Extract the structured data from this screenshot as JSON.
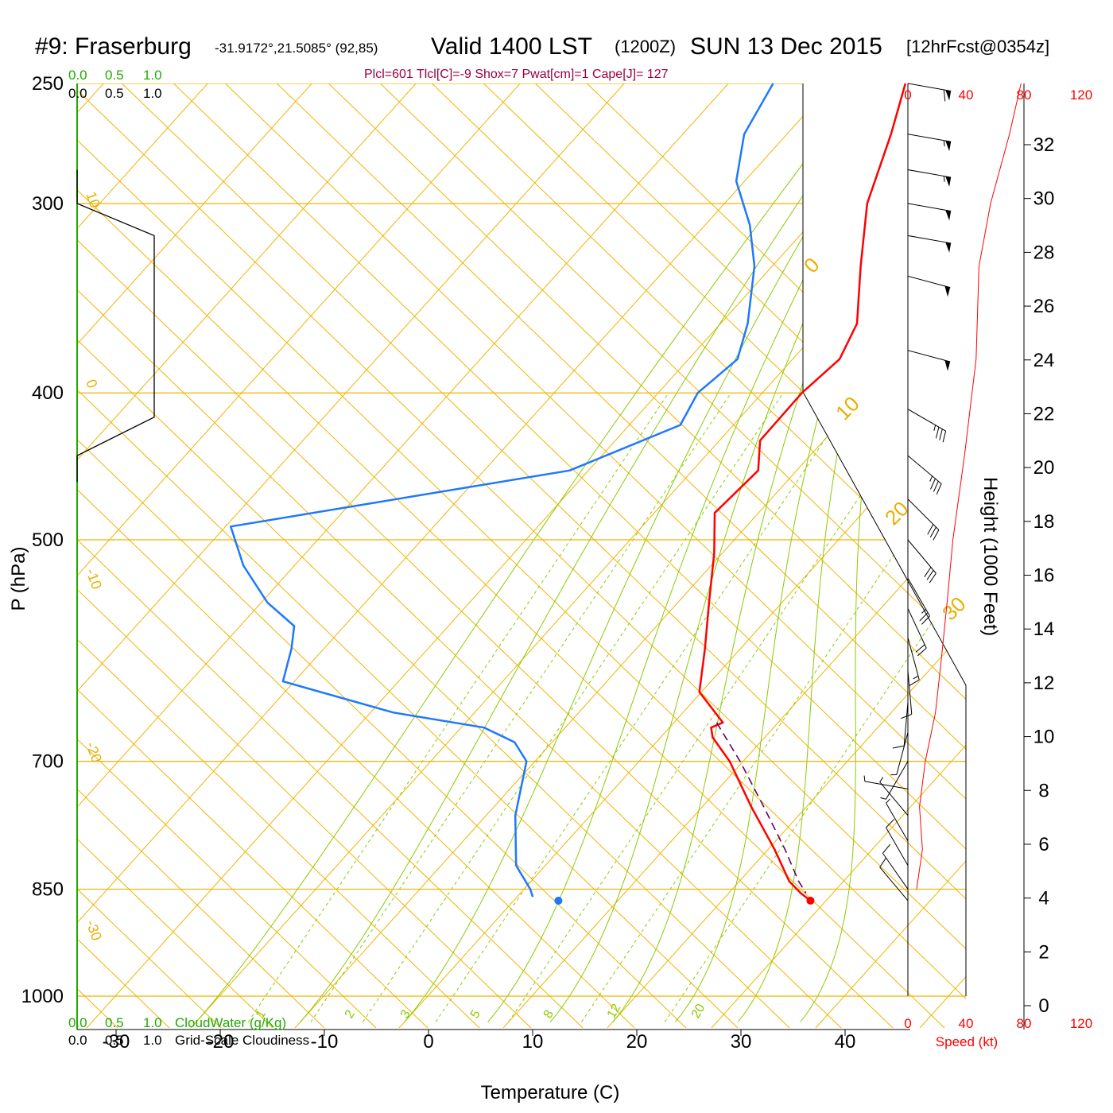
{
  "header": {
    "station": "#9: Fraserburg",
    "coords": "-31.9172°,21.5085° (92,85)",
    "valid": "Valid 1400 LST",
    "zulu": "(1200Z)",
    "date": "SUN 13 Dec 2015",
    "forecast": "[12hrFcst@0354z]"
  },
  "params": "Plcl=601 Tlcl[C]=-9 Shox=7 Pwat[cm]=1 Cape[J]= 127",
  "cloud_scale": {
    "water_ticks": [
      "0.0",
      "0.5",
      "1.0"
    ],
    "cover_ticks": [
      "0.0",
      "0.5",
      "1.0"
    ],
    "water_label": "CloudWater (g/Kg)",
    "cover_label": "Grid-Scale Cloudiness"
  },
  "colors": {
    "temperature": "#ff0000",
    "dewpoint": "#1e78ff",
    "isotherm": "#f0b400",
    "adiabat": "#88cc00",
    "parcel": "#660066",
    "cloud": "#22aa00",
    "params": "#990044"
  },
  "chart_data": {
    "type": "line",
    "title": "#9: Fraserburg Valid 1400 LST SUN 13 Dec 2015",
    "xlabel": "Temperature (C)",
    "ylabel": "P (hPa)",
    "xlim": [
      -33,
      36
    ],
    "x_ticks": [
      "-30",
      "-20",
      "-10",
      "0",
      "10",
      "20",
      "30",
      "40"
    ],
    "y_ticks": [
      "250",
      "300",
      "400",
      "500",
      "700",
      "850",
      "1000"
    ],
    "isotherm_labels": [
      "10",
      "0",
      "-10",
      "-20",
      "-30",
      "0",
      "10",
      "20",
      "30"
    ],
    "mixing_ratio_labels": [
      "1",
      "2",
      "3",
      "5",
      "8",
      "12",
      "20"
    ],
    "series": [
      {
        "name": "Temperature",
        "points": [
          [
            250,
            -33.0
          ],
          [
            270,
            -30.0
          ],
          [
            300,
            -26.3
          ],
          [
            330,
            -21.5
          ],
          [
            360,
            -16.9
          ],
          [
            380,
            -15.5
          ],
          [
            400,
            -16.2
          ],
          [
            430,
            -16.1
          ],
          [
            450,
            -13.7
          ],
          [
            480,
            -14.2
          ],
          [
            510,
            -10.8
          ],
          [
            550,
            -7.0
          ],
          [
            590,
            -3.4
          ],
          [
            630,
            -0.2
          ],
          [
            660,
            4.7
          ],
          [
            665,
            4.0
          ],
          [
            675,
            5.0
          ],
          [
            700,
            8.7
          ],
          [
            750,
            14.7
          ],
          [
            800,
            20.6
          ],
          [
            840,
            24.8
          ],
          [
            855,
            26.9
          ],
          [
            865,
            28.5
          ]
        ]
      },
      {
        "name": "Dew point",
        "points": [
          [
            250,
            -45.7
          ],
          [
            270,
            -44.1
          ],
          [
            290,
            -40.8
          ],
          [
            310,
            -35.7
          ],
          [
            330,
            -31.7
          ],
          [
            360,
            -27.4
          ],
          [
            380,
            -25.3
          ],
          [
            400,
            -26.2
          ],
          [
            420,
            -25.1
          ],
          [
            450,
            -31.8
          ],
          [
            490,
            -59.5
          ],
          [
            520,
            -54.9
          ],
          [
            550,
            -49.4
          ],
          [
            570,
            -44.8
          ],
          [
            590,
            -43.1
          ],
          [
            620,
            -41.1
          ],
          [
            650,
            -27.8
          ],
          [
            665,
            -17.8
          ],
          [
            680,
            -13.6
          ],
          [
            700,
            -10.8
          ],
          [
            760,
            -7.2
          ],
          [
            820,
            -2.8
          ],
          [
            850,
            0.6
          ],
          [
            860,
            1.5
          ]
        ]
      },
      {
        "name": "Parcel",
        "points": [
          [
            660,
            4.1
          ],
          [
            700,
            9.7
          ],
          [
            750,
            15.9
          ],
          [
            800,
            21.6
          ],
          [
            840,
            25.7
          ],
          [
            855,
            27.4
          ]
        ]
      }
    ],
    "surface": {
      "pressure": 865,
      "temperature": 28.5,
      "dewpoint": 4.3
    },
    "height_axis": {
      "label": "Height (1000 Feet)",
      "ticks": [
        "32",
        "30",
        "28",
        "26",
        "24",
        "22",
        "20",
        "18",
        "16",
        "14",
        "12",
        "10",
        "8",
        "6",
        "4",
        "2",
        "0"
      ]
    },
    "wind_speed": {
      "label": "Speed (kt)",
      "ticks": [
        "0",
        "40",
        "80",
        "120"
      ],
      "profile": [
        [
          250,
          78
        ],
        [
          270,
          70
        ],
        [
          300,
          57
        ],
        [
          330,
          49
        ],
        [
          380,
          47
        ],
        [
          440,
          39
        ],
        [
          500,
          31
        ],
        [
          550,
          27
        ],
        [
          600,
          23
        ],
        [
          650,
          19
        ],
        [
          700,
          12
        ],
        [
          750,
          8
        ],
        [
          800,
          10
        ],
        [
          850,
          6
        ]
      ]
    },
    "wind_barbs": [
      {
        "p": 250,
        "dir": 280,
        "spd": 60
      },
      {
        "p": 270,
        "dir": 280,
        "spd": 55
      },
      {
        "p": 285,
        "dir": 280,
        "spd": 55
      },
      {
        "p": 300,
        "dir": 280,
        "spd": 50
      },
      {
        "p": 315,
        "dir": 280,
        "spd": 50
      },
      {
        "p": 335,
        "dir": 285,
        "spd": 50
      },
      {
        "p": 375,
        "dir": 285,
        "spd": 50
      },
      {
        "p": 410,
        "dir": 300,
        "spd": 35
      },
      {
        "p": 440,
        "dir": 310,
        "spd": 35
      },
      {
        "p": 470,
        "dir": 315,
        "spd": 30
      },
      {
        "p": 500,
        "dir": 320,
        "spd": 30
      },
      {
        "p": 530,
        "dir": 330,
        "spd": 25
      },
      {
        "p": 555,
        "dir": 335,
        "spd": 20
      },
      {
        "p": 580,
        "dir": 345,
        "spd": 15
      },
      {
        "p": 610,
        "dir": 355,
        "spd": 10
      },
      {
        "p": 640,
        "dir": 5,
        "spd": 10
      },
      {
        "p": 670,
        "dir": 15,
        "spd": 5
      },
      {
        "p": 700,
        "dir": 30,
        "spd": 5
      },
      {
        "p": 730,
        "dir": 100,
        "spd": 5
      },
      {
        "p": 760,
        "dir": 140,
        "spd": 5
      },
      {
        "p": 790,
        "dir": 150,
        "spd": 5
      },
      {
        "p": 820,
        "dir": 150,
        "spd": 10
      },
      {
        "p": 850,
        "dir": 145,
        "spd": 10
      },
      {
        "p": 865,
        "dir": 140,
        "spd": 10
      }
    ],
    "cloud_cover_profile": [
      [
        300,
        0.0
      ],
      [
        315,
        1.0
      ],
      [
        415,
        1.0
      ],
      [
        440,
        0.0
      ]
    ]
  }
}
